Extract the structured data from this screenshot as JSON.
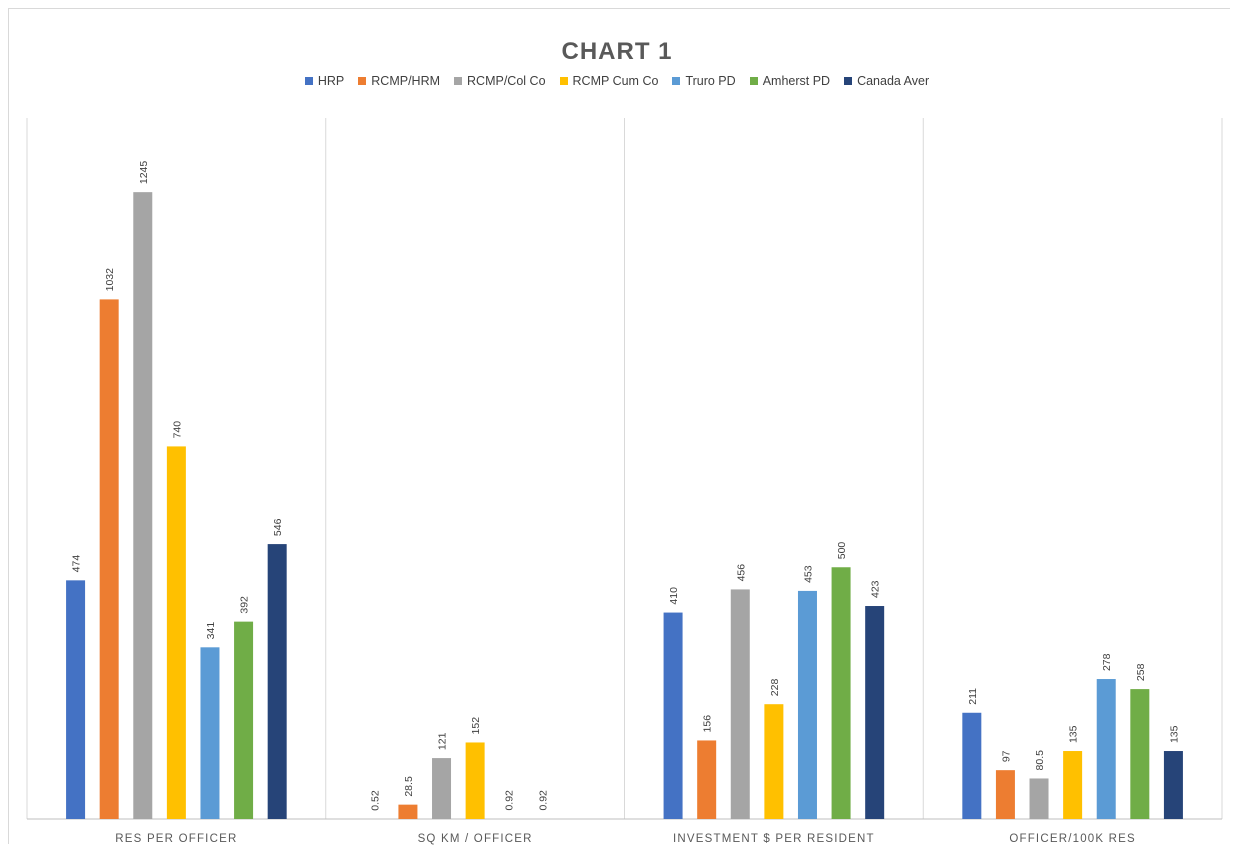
{
  "chart_data": {
    "type": "bar",
    "title": "CHART 1",
    "categories": [
      "RES PER OFFICER",
      "SQ KM / OFFICER",
      "INVESTMENT $ PER RESIDENT",
      "OFFICER/100K RES"
    ],
    "series": [
      {
        "name": "HRP",
        "color": "#4472c4",
        "values": [
          474,
          0.52,
          410,
          211
        ]
      },
      {
        "name": "RCMP/HRM",
        "color": "#ed7d31",
        "values": [
          1032,
          28.5,
          156,
          97
        ]
      },
      {
        "name": "RCMP/Col Co",
        "color": "#a5a5a5",
        "values": [
          1245,
          121,
          456,
          80.5
        ]
      },
      {
        "name": "RCMP Cum Co",
        "color": "#ffc000",
        "values": [
          740,
          152,
          228,
          135
        ]
      },
      {
        "name": "Truro PD",
        "color": "#5b9bd5",
        "values": [
          341,
          0.92,
          453,
          278
        ]
      },
      {
        "name": "Amherst PD",
        "color": "#70ad47",
        "values": [
          392,
          0.92,
          500,
          258
        ]
      },
      {
        "name": "Canada Aver",
        "color": "#264478",
        "values": [
          546,
          "",
          423,
          135
        ]
      }
    ],
    "ylim": [
      0,
      1370
    ],
    "grid": false,
    "legend_position": "top"
  }
}
